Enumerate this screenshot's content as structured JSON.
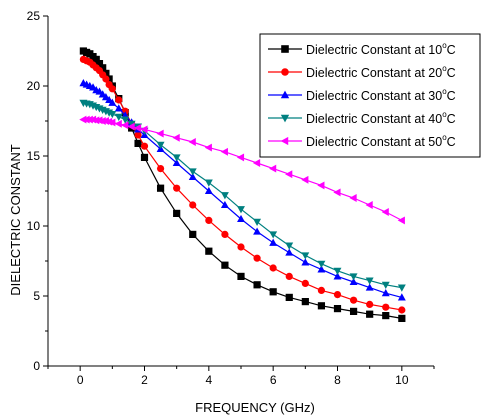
{
  "chart_data": {
    "type": "line",
    "title": "",
    "xlabel": "FREQUENCY (GHz)",
    "ylabel": "DIELECTRIC CONSTANT",
    "xlim": [
      -1,
      11
    ],
    "ylim": [
      0,
      25
    ],
    "xticks": [
      0,
      2,
      4,
      6,
      8,
      10
    ],
    "yticks": [
      0,
      5,
      10,
      15,
      20,
      25
    ],
    "grid": false,
    "legend_position": "top-right",
    "x": [
      0.1,
      0.2,
      0.3,
      0.4,
      0.5,
      0.6,
      0.7,
      0.8,
      0.9,
      1.0,
      1.2,
      1.4,
      1.6,
      1.8,
      2.0,
      2.5,
      3.0,
      3.5,
      4.0,
      4.5,
      5.0,
      5.5,
      6.0,
      6.5,
      7.0,
      7.5,
      8.0,
      8.5,
      9.0,
      9.5,
      10.0
    ],
    "series": [
      {
        "name": "Dielectric Constant at 10°C",
        "legend_main": "Dielectric Constant at 10",
        "legend_deg": "o",
        "legend_unit": "C",
        "color": "#000000",
        "marker": "square",
        "values": [
          22.5,
          22.4,
          22.3,
          22.1,
          21.9,
          21.6,
          21.3,
          20.9,
          20.5,
          20.0,
          19.1,
          18.1,
          17.0,
          15.9,
          14.9,
          12.7,
          10.9,
          9.4,
          8.2,
          7.2,
          6.4,
          5.8,
          5.3,
          4.9,
          4.6,
          4.3,
          4.1,
          3.9,
          3.7,
          3.6,
          3.4
        ]
      },
      {
        "name": "Dielectric Constant at 20°C",
        "legend_main": "Dielectric Constant at 20",
        "legend_deg": "o",
        "legend_unit": "C",
        "color": "#ff0000",
        "marker": "circle",
        "values": [
          21.9,
          21.8,
          21.7,
          21.5,
          21.3,
          21.1,
          20.8,
          20.5,
          20.1,
          19.8,
          19.0,
          18.2,
          17.3,
          16.5,
          15.7,
          14.1,
          12.7,
          11.5,
          10.4,
          9.4,
          8.5,
          7.7,
          7.0,
          6.4,
          5.9,
          5.4,
          5.1,
          4.7,
          4.4,
          4.2,
          4.0
        ]
      },
      {
        "name": "Dielectric Constant at 30°C",
        "legend_main": "Dielectric Constant at 30",
        "legend_deg": "o",
        "legend_unit": "C",
        "color": "#0000ff",
        "marker": "triangle-up",
        "values": [
          20.2,
          20.1,
          20.0,
          19.9,
          19.7,
          19.6,
          19.4,
          19.2,
          19.0,
          18.8,
          18.4,
          17.9,
          17.4,
          16.9,
          16.5,
          15.5,
          14.5,
          13.5,
          12.5,
          11.5,
          10.5,
          9.6,
          8.8,
          8.1,
          7.4,
          6.9,
          6.4,
          6.0,
          5.6,
          5.2,
          4.9
        ]
      },
      {
        "name": "Dielectric Constant at 40°C",
        "legend_main": "Dielectric Constant at 40",
        "legend_deg": "o",
        "legend_unit": "C",
        "color": "#008080",
        "marker": "triangle-down",
        "values": [
          18.8,
          18.75,
          18.7,
          18.6,
          18.5,
          18.4,
          18.3,
          18.2,
          18.1,
          18.0,
          17.8,
          17.6,
          17.3,
          17.1,
          16.8,
          15.8,
          14.9,
          13.9,
          13.1,
          12.2,
          11.2,
          10.3,
          9.4,
          8.6,
          7.9,
          7.3,
          6.8,
          6.4,
          6.1,
          5.8,
          5.6
        ]
      },
      {
        "name": "Dielectric Constant at 50°C",
        "legend_main": "Dielectric Constant at 50",
        "legend_deg": "o",
        "legend_unit": "C",
        "color": "#ff00ff",
        "marker": "triangle-left",
        "values": [
          17.6,
          17.6,
          17.6,
          17.6,
          17.55,
          17.55,
          17.5,
          17.5,
          17.45,
          17.4,
          17.3,
          17.2,
          17.1,
          17.0,
          16.9,
          16.6,
          16.3,
          16.0,
          15.6,
          15.3,
          14.9,
          14.5,
          14.1,
          13.7,
          13.3,
          12.9,
          12.4,
          12.0,
          11.5,
          11.0,
          10.4
        ]
      }
    ]
  }
}
